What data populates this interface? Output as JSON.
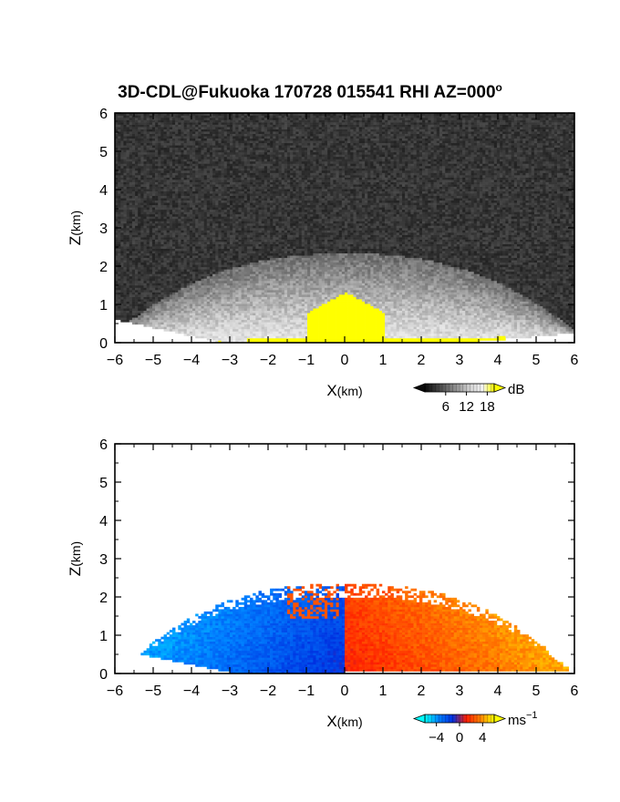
{
  "figure": {
    "title": "3D-CDL@Fukuoka 170728 015541 RHI AZ=000",
    "title_superscript": "o"
  },
  "chart_data": [
    {
      "type": "heatmap",
      "panel": "reflectivity",
      "xlabel_main": "X",
      "xlabel_unit": "(km)",
      "ylabel_main": "Z",
      "ylabel_unit": "(km)",
      "xlim": [
        -6,
        6
      ],
      "ylim": [
        0,
        6
      ],
      "xticks": [
        -6,
        -5,
        -4,
        -3,
        -2,
        -1,
        0,
        1,
        2,
        3,
        4,
        5,
        6
      ],
      "yticks": [
        0,
        1,
        2,
        3,
        4,
        5,
        6
      ],
      "colorbar": {
        "unit": "dB",
        "unit_sup": "",
        "ticks": [
          6,
          12,
          18
        ],
        "range": [
          0,
          20
        ],
        "colors": [
          "#0a0a0a",
          "#3a3a3a",
          "#6e6e6e",
          "#a2a2a2",
          "#d6d6d6",
          "#f4f4f4",
          "#ffff00"
        ]
      },
      "field": {
        "background": "noise ~0-4 dB above scan boundary",
        "echo_top_km": 2.3,
        "dome_peak_km": 1.3,
        "near_ground_value": 18,
        "ground_clutter_color": "#ffff00"
      }
    },
    {
      "type": "heatmap",
      "panel": "doppler_velocity",
      "xlabel_main": "X",
      "xlabel_unit": "(km)",
      "ylabel_main": "Z",
      "ylabel_unit": "(km)",
      "xlim": [
        -6,
        6
      ],
      "ylim": [
        0,
        6
      ],
      "xticks": [
        -6,
        -5,
        -4,
        -3,
        -2,
        -1,
        0,
        1,
        2,
        3,
        4,
        5,
        6
      ],
      "yticks": [
        0,
        1,
        2,
        3,
        4,
        5,
        6
      ],
      "colorbar": {
        "unit": "ms",
        "unit_sup": "−1",
        "ticks": [
          "−4",
          "0",
          "4"
        ],
        "range": [
          -6,
          6
        ],
        "colors": [
          "#00ffff",
          "#0080ff",
          "#0030e0",
          "#ff1e00",
          "#ff8000",
          "#ffff00"
        ]
      },
      "field": {
        "data_top_km": 2.3,
        "negative_side": "x<0 (toward radar, blue)",
        "positive_side": "x>0 (away, red to yellow)",
        "max_speed_ms": 5
      }
    }
  ]
}
